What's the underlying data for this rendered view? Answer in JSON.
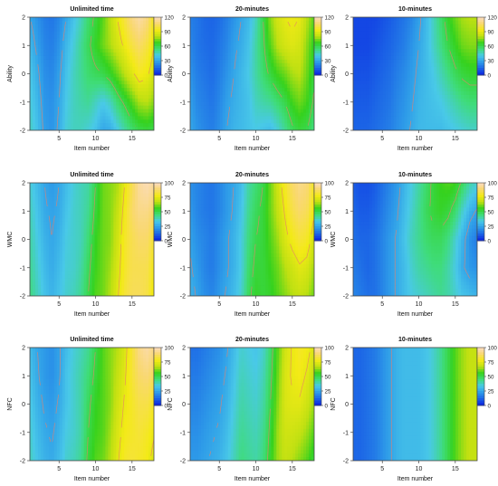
{
  "figure": {
    "rows": [
      {
        "ylabel": "Ability",
        "yticks": [
          "-2",
          "-1",
          "0",
          "1",
          "2"
        ],
        "colorbar_ticks": [
          "0",
          "30",
          "60",
          "90",
          "120"
        ],
        "colorbar_range": [
          0,
          120
        ]
      },
      {
        "ylabel": "WMC",
        "yticks": [
          "-2",
          "-1",
          "0",
          "1",
          "2"
        ],
        "colorbar_ticks": [
          "0",
          "25",
          "50",
          "75",
          "100"
        ],
        "colorbar_range": [
          0,
          100
        ]
      },
      {
        "ylabel": "NFC",
        "yticks": [
          "-2",
          "-1",
          "0",
          "1",
          "2"
        ],
        "colorbar_ticks": [
          "0",
          "25",
          "50",
          "75",
          "100"
        ],
        "colorbar_range": [
          0,
          100
        ]
      }
    ],
    "columns": [
      {
        "title": "Unlimited time"
      },
      {
        "title": "20-minutes"
      },
      {
        "title": "10-minutes"
      }
    ],
    "xlabel": "Item number",
    "xticks": [
      "5",
      "10",
      "15"
    ]
  },
  "colors": {
    "palette_low_to_high": [
      "#0a1fe0",
      "#1b62e6",
      "#2e9be8",
      "#49c9e8",
      "#3fdc7a",
      "#35d21e",
      "#bfe012",
      "#f3ea16",
      "#f9d870",
      "#fbdcc4"
    ],
    "contour_line": "#e8806a",
    "frame": "#444444"
  },
  "chart_data": [
    {
      "type": "heatmap",
      "title": "Unlimited time",
      "xlabel": "Item number",
      "ylabel": "Ability",
      "xlim": [
        1,
        18
      ],
      "ylim": [
        -2,
        2
      ],
      "zlim": [
        0,
        120
      ],
      "x": [
        1,
        2,
        3,
        4,
        5,
        6,
        7,
        8,
        9,
        10,
        11,
        12,
        13,
        14,
        15,
        16,
        17,
        18
      ],
      "y": [
        2,
        1,
        0,
        -1,
        -2
      ],
      "z": [
        [
          30,
          25,
          20,
          18,
          22,
          30,
          38,
          45,
          55,
          62,
          70,
          80,
          90,
          100,
          110,
          115,
          110,
          95
        ],
        [
          35,
          28,
          22,
          20,
          25,
          35,
          42,
          50,
          58,
          65,
          72,
          78,
          85,
          92,
          100,
          105,
          100,
          90
        ],
        [
          40,
          32,
          24,
          22,
          28,
          38,
          45,
          50,
          55,
          58,
          60,
          65,
          72,
          80,
          88,
          95,
          92,
          85
        ],
        [
          42,
          35,
          26,
          24,
          30,
          40,
          45,
          48,
          50,
          45,
          40,
          45,
          55,
          62,
          70,
          78,
          80,
          75
        ],
        [
          45,
          38,
          28,
          25,
          32,
          42,
          45,
          45,
          42,
          38,
          30,
          32,
          40,
          48,
          55,
          60,
          62,
          60
        ]
      ]
    },
    {
      "type": "heatmap",
      "title": "20-minutes",
      "xlabel": "Item number",
      "ylabel": "Ability",
      "xlim": [
        1,
        18
      ],
      "ylim": [
        -2,
        2
      ],
      "zlim": [
        0,
        120
      ],
      "x": [
        1,
        2,
        3,
        4,
        5,
        6,
        7,
        8,
        9,
        10,
        11,
        12,
        13,
        14,
        15,
        16,
        17,
        18
      ],
      "y": [
        2,
        1,
        0,
        -1,
        -2
      ],
      "z": [
        [
          20,
          18,
          15,
          14,
          16,
          20,
          25,
          30,
          35,
          45,
          60,
          75,
          85,
          90,
          92,
          90,
          80,
          70
        ],
        [
          22,
          18,
          16,
          15,
          18,
          22,
          28,
          32,
          38,
          48,
          58,
          70,
          80,
          85,
          88,
          85,
          75,
          65
        ],
        [
          25,
          20,
          18,
          16,
          20,
          25,
          30,
          35,
          40,
          48,
          55,
          62,
          68,
          72,
          78,
          80,
          72,
          62
        ],
        [
          28,
          22,
          20,
          18,
          22,
          28,
          32,
          35,
          38,
          45,
          48,
          50,
          55,
          60,
          68,
          72,
          68,
          58
        ],
        [
          30,
          25,
          22,
          20,
          24,
          30,
          34,
          36,
          38,
          40,
          38,
          36,
          42,
          50,
          58,
          62,
          60,
          52
        ]
      ]
    },
    {
      "type": "heatmap",
      "title": "10-minutes",
      "xlabel": "Item number",
      "ylabel": "Ability",
      "xlim": [
        1,
        18
      ],
      "ylim": [
        -2,
        2
      ],
      "zlim": [
        0,
        120
      ],
      "x": [
        1,
        2,
        3,
        4,
        5,
        6,
        7,
        8,
        9,
        10,
        11,
        12,
        13,
        14,
        15,
        16,
        17,
        18
      ],
      "y": [
        2,
        1,
        0,
        -1,
        -2
      ],
      "z": [
        [
          8,
          8,
          8,
          8,
          10,
          12,
          15,
          18,
          22,
          28,
          35,
          45,
          55,
          65,
          72,
          78,
          80,
          80
        ],
        [
          8,
          8,
          8,
          10,
          12,
          14,
          17,
          20,
          25,
          30,
          36,
          44,
          52,
          60,
          66,
          72,
          74,
          74
        ],
        [
          10,
          10,
          10,
          12,
          14,
          16,
          20,
          23,
          27,
          32,
          36,
          40,
          46,
          52,
          58,
          62,
          64,
          64
        ],
        [
          12,
          12,
          12,
          14,
          16,
          18,
          22,
          25,
          29,
          34,
          36,
          38,
          40,
          44,
          48,
          52,
          54,
          54
        ],
        [
          14,
          14,
          14,
          16,
          18,
          20,
          24,
          27,
          31,
          35,
          36,
          36,
          36,
          38,
          40,
          42,
          44,
          44
        ]
      ]
    },
    {
      "type": "heatmap",
      "title": "Unlimited time",
      "xlabel": "Item number",
      "ylabel": "WMC",
      "xlim": [
        1,
        18
      ],
      "ylim": [
        -2,
        2
      ],
      "zlim": [
        0,
        100
      ],
      "x": [
        1,
        2,
        3,
        4,
        5,
        6,
        7,
        8,
        9,
        10,
        11,
        12,
        13,
        14,
        15,
        16,
        17,
        18
      ],
      "y": [
        2,
        1,
        0,
        -1,
        -2
      ],
      "z": [
        [
          35,
          30,
          25,
          22,
          25,
          30,
          35,
          38,
          40,
          50,
          60,
          62,
          65,
          75,
          85,
          95,
          98,
          95
        ],
        [
          38,
          32,
          26,
          24,
          26,
          32,
          36,
          38,
          42,
          52,
          60,
          62,
          68,
          78,
          88,
          92,
          92,
          88
        ],
        [
          40,
          34,
          28,
          25,
          28,
          34,
          36,
          38,
          45,
          55,
          60,
          62,
          70,
          80,
          85,
          88,
          88,
          82
        ],
        [
          42,
          36,
          30,
          26,
          30,
          35,
          36,
          40,
          48,
          56,
          60,
          64,
          72,
          80,
          85,
          85,
          85,
          78
        ],
        [
          44,
          38,
          32,
          28,
          32,
          36,
          38,
          42,
          50,
          58,
          60,
          66,
          74,
          82,
          86,
          86,
          84,
          76
        ]
      ]
    },
    {
      "type": "heatmap",
      "title": "20-minutes",
      "xlabel": "Item number",
      "ylabel": "WMC",
      "xlim": [
        1,
        18
      ],
      "ylim": [
        -2,
        2
      ],
      "zlim": [
        0,
        100
      ],
      "x": [
        1,
        2,
        3,
        4,
        5,
        6,
        7,
        8,
        9,
        10,
        11,
        12,
        13,
        14,
        15,
        16,
        17,
        18
      ],
      "y": [
        2,
        1,
        0,
        -1,
        -2
      ],
      "z": [
        [
          20,
          18,
          16,
          15,
          18,
          22,
          25,
          30,
          40,
          45,
          50,
          60,
          70,
          80,
          88,
          92,
          90,
          80
        ],
        [
          22,
          18,
          16,
          15,
          18,
          22,
          26,
          32,
          42,
          48,
          52,
          60,
          68,
          76,
          84,
          88,
          86,
          76
        ],
        [
          24,
          20,
          18,
          16,
          20,
          24,
          28,
          34,
          44,
          50,
          52,
          58,
          64,
          72,
          78,
          82,
          80,
          70
        ],
        [
          26,
          22,
          18,
          16,
          20,
          24,
          28,
          34,
          46,
          52,
          52,
          56,
          60,
          66,
          70,
          74,
          72,
          64
        ],
        [
          28,
          24,
          20,
          18,
          22,
          26,
          30,
          36,
          48,
          54,
          52,
          54,
          58,
          62,
          66,
          68,
          66,
          60
        ]
      ]
    },
    {
      "type": "heatmap",
      "title": "10-minutes",
      "xlabel": "Item number",
      "ylabel": "WMC",
      "xlim": [
        1,
        18
      ],
      "ylim": [
        -2,
        2
      ],
      "zlim": [
        0,
        100
      ],
      "x": [
        1,
        2,
        3,
        4,
        5,
        6,
        7,
        8,
        9,
        10,
        11,
        12,
        13,
        14,
        15,
        16,
        17,
        18
      ],
      "y": [
        2,
        1,
        0,
        -1,
        -2
      ],
      "z": [
        [
          10,
          8,
          8,
          10,
          14,
          18,
          22,
          28,
          34,
          40,
          46,
          52,
          56,
          58,
          56,
          48,
          40,
          36
        ],
        [
          12,
          10,
          10,
          12,
          16,
          20,
          24,
          30,
          36,
          42,
          48,
          52,
          54,
          52,
          46,
          36,
          28,
          24
        ],
        [
          14,
          12,
          12,
          14,
          18,
          22,
          26,
          32,
          38,
          42,
          46,
          48,
          48,
          44,
          36,
          28,
          20,
          16
        ],
        [
          16,
          14,
          12,
          14,
          18,
          22,
          26,
          30,
          36,
          40,
          42,
          44,
          44,
          40,
          34,
          26,
          22,
          20
        ],
        [
          18,
          16,
          14,
          14,
          18,
          22,
          26,
          30,
          34,
          36,
          38,
          40,
          42,
          40,
          36,
          32,
          30,
          28
        ]
      ]
    },
    {
      "type": "heatmap",
      "title": "Unlimited time",
      "xlabel": "Item number",
      "ylabel": "NFC",
      "xlim": [
        1,
        18
      ],
      "ylim": [
        -2,
        2
      ],
      "zlim": [
        0,
        100
      ],
      "x": [
        1,
        2,
        3,
        4,
        5,
        6,
        7,
        8,
        9,
        10,
        11,
        12,
        13,
        14,
        15,
        16,
        17,
        18
      ],
      "y": [
        2,
        1,
        0,
        -1,
        -2
      ],
      "z": [
        [
          30,
          25,
          22,
          20,
          24,
          30,
          35,
          38,
          42,
          50,
          58,
          62,
          66,
          72,
          82,
          92,
          96,
          92
        ],
        [
          32,
          26,
          22,
          20,
          24,
          32,
          36,
          40,
          45,
          52,
          58,
          62,
          68,
          74,
          82,
          88,
          90,
          86
        ],
        [
          34,
          28,
          24,
          22,
          26,
          32,
          36,
          40,
          48,
          55,
          58,
          62,
          70,
          76,
          80,
          84,
          84,
          80
        ],
        [
          36,
          30,
          26,
          24,
          28,
          34,
          36,
          40,
          50,
          56,
          58,
          64,
          72,
          78,
          80,
          82,
          80,
          76
        ],
        [
          38,
          32,
          28,
          26,
          30,
          36,
          38,
          42,
          52,
          58,
          60,
          66,
          74,
          80,
          82,
          80,
          78,
          72
        ]
      ]
    },
    {
      "type": "heatmap",
      "title": "20-minutes",
      "xlabel": "Item number",
      "ylabel": "NFC",
      "xlim": [
        1,
        18
      ],
      "ylim": [
        -2,
        2
      ],
      "zlim": [
        0,
        100
      ],
      "x": [
        1,
        2,
        3,
        4,
        5,
        6,
        7,
        8,
        9,
        10,
        11,
        12,
        13,
        14,
        15,
        16,
        17,
        18
      ],
      "y": [
        2,
        1,
        0,
        -1,
        -2
      ],
      "z": [
        [
          14,
          14,
          16,
          18,
          20,
          24,
          30,
          36,
          34,
          32,
          36,
          46,
          58,
          70,
          76,
          80,
          78,
          72
        ],
        [
          16,
          16,
          18,
          20,
          22,
          26,
          32,
          38,
          36,
          34,
          38,
          48,
          60,
          72,
          76,
          78,
          74,
          68
        ],
        [
          18,
          18,
          20,
          22,
          24,
          28,
          34,
          40,
          38,
          36,
          40,
          50,
          62,
          72,
          74,
          74,
          70,
          64
        ],
        [
          20,
          20,
          22,
          24,
          26,
          30,
          36,
          42,
          40,
          38,
          42,
          52,
          64,
          70,
          70,
          68,
          64,
          58
        ],
        [
          22,
          22,
          24,
          26,
          28,
          32,
          38,
          44,
          42,
          40,
          44,
          54,
          64,
          68,
          66,
          62,
          58,
          52
        ]
      ]
    },
    {
      "type": "heatmap",
      "title": "10-minutes",
      "xlabel": "Item number",
      "ylabel": "NFC",
      "xlim": [
        1,
        18
      ],
      "ylim": [
        -2,
        2
      ],
      "zlim": [
        0,
        100
      ],
      "x": [
        1,
        2,
        3,
        4,
        5,
        6,
        7,
        8,
        9,
        10,
        11,
        12,
        13,
        14,
        15,
        16,
        17,
        18
      ],
      "y": [
        2,
        1,
        0,
        -1,
        -2
      ],
      "z": [
        [
          12,
          12,
          14,
          16,
          20,
          24,
          28,
          30,
          30,
          30,
          32,
          36,
          42,
          50,
          58,
          64,
          68,
          68
        ],
        [
          12,
          12,
          14,
          16,
          20,
          24,
          28,
          30,
          30,
          30,
          32,
          36,
          42,
          50,
          58,
          64,
          68,
          68
        ],
        [
          12,
          12,
          14,
          16,
          20,
          24,
          28,
          30,
          30,
          30,
          32,
          36,
          42,
          50,
          58,
          64,
          68,
          68
        ],
        [
          12,
          12,
          14,
          16,
          20,
          24,
          28,
          30,
          30,
          30,
          32,
          36,
          42,
          50,
          58,
          64,
          68,
          68
        ],
        [
          12,
          12,
          14,
          16,
          20,
          24,
          28,
          30,
          30,
          30,
          32,
          36,
          42,
          50,
          58,
          64,
          68,
          68
        ]
      ]
    }
  ]
}
